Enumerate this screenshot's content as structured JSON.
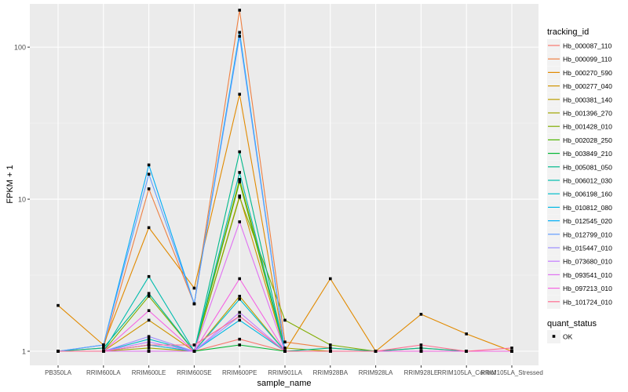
{
  "chart_data": {
    "type": "line",
    "xlabel": "sample_name",
    "ylabel": "FPKM + 1",
    "y_scale": "log10",
    "ylim": [
      1,
      175
    ],
    "y_ticks": [
      1,
      10,
      100
    ],
    "y_tick_labels": [
      "1",
      "10",
      "100"
    ],
    "grid": true,
    "categories": [
      "PB350LA",
      "RRIM600LA",
      "RRIM600LE",
      "RRIM600SE",
      "RRIM600PE",
      "RRIM901LA",
      "RRIM928BA",
      "RRIM928LA",
      "RRIM928LE",
      "RRIM105LA_Control",
      "RRIM105LA_Stressed"
    ],
    "series": [
      {
        "name": "Hb_000087_110",
        "color": "#F8766D",
        "values": [
          1.0,
          1.0,
          1.1,
          1.0,
          1.2,
          1.0,
          1.0,
          1.0,
          1.0,
          1.0,
          1.0
        ]
      },
      {
        "name": "Hb_000099_110",
        "color": "#EE8043",
        "values": [
          1.0,
          1.05,
          11.7,
          2.05,
          175,
          1.15,
          1.05,
          1.0,
          1.05,
          1.0,
          1.0
        ]
      },
      {
        "name": "Hb_000270_590",
        "color": "#E18A00",
        "values": [
          2.0,
          1.1,
          6.5,
          2.6,
          49,
          1.0,
          3.0,
          1.0,
          1.75,
          1.3,
          1.0
        ]
      },
      {
        "name": "Hb_000277_040",
        "color": "#CF9400",
        "values": [
          1.0,
          1.0,
          1.6,
          1.0,
          10.5,
          1.0,
          1.0,
          1.0,
          1.0,
          1.0,
          1.0
        ]
      },
      {
        "name": "Hb_000381_140",
        "color": "#BA9E00",
        "values": [
          1.0,
          1.0,
          1.0,
          1.0,
          2.3,
          1.0,
          1.0,
          1.0,
          1.0,
          1.0,
          1.0
        ]
      },
      {
        "name": "Hb_001396_270",
        "color": "#A1A600",
        "values": [
          1.0,
          1.0,
          1.05,
          1.0,
          13.5,
          1.05,
          1.0,
          1.0,
          1.0,
          1.0,
          1.0
        ]
      },
      {
        "name": "Hb_001428_010",
        "color": "#80AC00",
        "values": [
          1.0,
          1.0,
          2.3,
          1.0,
          10.3,
          1.6,
          1.1,
          1.0,
          1.0,
          1.0,
          1.0
        ]
      },
      {
        "name": "Hb_002028_250",
        "color": "#4EB300",
        "values": [
          1.0,
          1.0,
          1.0,
          1.0,
          13.0,
          1.0,
          1.0,
          1.0,
          1.0,
          1.0,
          1.0
        ]
      },
      {
        "name": "Hb_003849_210",
        "color": "#00B632",
        "values": [
          1.0,
          1.0,
          1.0,
          1.0,
          1.1,
          1.0,
          1.0,
          1.0,
          1.0,
          1.0,
          1.0
        ]
      },
      {
        "name": "Hb_005081_050",
        "color": "#00B98B",
        "values": [
          1.0,
          1.05,
          2.4,
          1.0,
          20.5,
          1.0,
          1.05,
          1.0,
          1.05,
          1.0,
          1.0
        ]
      },
      {
        "name": "Hb_006012_030",
        "color": "#00BCAE",
        "values": [
          1.0,
          1.0,
          3.1,
          1.0,
          15.0,
          1.0,
          1.0,
          1.0,
          1.0,
          1.0,
          1.0
        ]
      },
      {
        "name": "Hb_006198_160",
        "color": "#00BDCA",
        "values": [
          1.0,
          1.0,
          1.2,
          1.0,
          2.2,
          1.0,
          1.0,
          1.0,
          1.0,
          1.0,
          1.0
        ]
      },
      {
        "name": "Hb_010812_080",
        "color": "#00B9E3",
        "values": [
          1.0,
          1.0,
          1.1,
          1.0,
          1.6,
          1.0,
          1.0,
          1.0,
          1.0,
          1.0,
          1.0
        ]
      },
      {
        "name": "Hb_012545_020",
        "color": "#00AEF6",
        "values": [
          1.0,
          1.1,
          16.8,
          2.05,
          125,
          1.0,
          1.0,
          1.0,
          1.0,
          1.0,
          1.0
        ]
      },
      {
        "name": "Hb_012799_010",
        "color": "#619CFF",
        "values": [
          1.0,
          1.1,
          14.6,
          2.05,
          118,
          1.0,
          1.0,
          1.0,
          1.0,
          1.0,
          1.0
        ]
      },
      {
        "name": "Hb_015447_010",
        "color": "#9D8FFF",
        "values": [
          1.0,
          1.0,
          1.25,
          1.0,
          1.7,
          1.0,
          1.0,
          1.0,
          1.0,
          1.0,
          1.0
        ]
      },
      {
        "name": "Hb_073680_010",
        "color": "#C47BFF",
        "values": [
          1.0,
          1.0,
          1.15,
          1.0,
          1.8,
          1.0,
          1.0,
          1.0,
          1.0,
          1.0,
          1.0
        ]
      },
      {
        "name": "Hb_093541_010",
        "color": "#E071F2",
        "values": [
          1.0,
          1.0,
          1.0,
          1.0,
          7.1,
          1.0,
          1.0,
          1.0,
          1.0,
          1.0,
          1.0
        ]
      },
      {
        "name": "Hb_097213_010",
        "color": "#F564E3",
        "values": [
          1.0,
          1.0,
          1.85,
          1.0,
          3.0,
          1.0,
          1.0,
          1.0,
          1.0,
          1.0,
          1.0
        ]
      },
      {
        "name": "Hb_101724_010",
        "color": "#FF6C91",
        "values": [
          1.0,
          1.0,
          1.1,
          1.1,
          1.7,
          1.0,
          1.0,
          1.0,
          1.1,
          1.0,
          1.05
        ]
      }
    ],
    "legend": {
      "position": "right",
      "title": "tracking_id",
      "shape_title": "quant_status",
      "shape_items": [
        "OK"
      ]
    },
    "colors": {
      "panel_background": "#EBEBEB",
      "grid_major": "#FFFFFF",
      "grid_minor": "#F5F5F5",
      "axis_text": "#4D4D4D",
      "point": "#000000"
    }
  }
}
